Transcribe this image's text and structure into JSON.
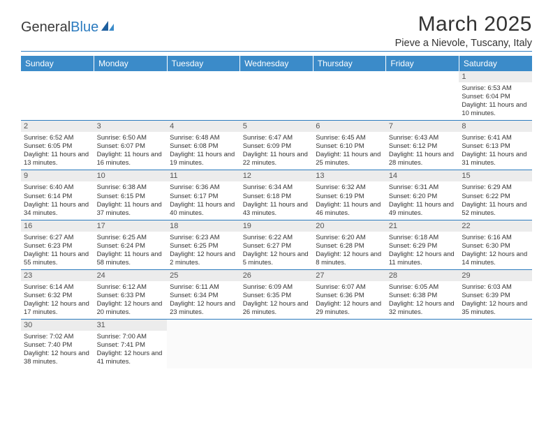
{
  "logo": {
    "word1": "General",
    "word2": "Blue"
  },
  "title": "March 2025",
  "location": "Pieve a Nievole, Tuscany, Italy",
  "colors": {
    "header_bg": "#3b8bc9",
    "rule": "#2b7bbf",
    "daynum_bg": "#ececec",
    "text": "#333333"
  },
  "weekdays": [
    "Sunday",
    "Monday",
    "Tuesday",
    "Wednesday",
    "Thursday",
    "Friday",
    "Saturday"
  ],
  "weeks": [
    [
      null,
      null,
      null,
      null,
      null,
      null,
      {
        "n": "1",
        "sr": "Sunrise: 6:53 AM",
        "ss": "Sunset: 6:04 PM",
        "dl": "Daylight: 11 hours and 10 minutes."
      }
    ],
    [
      {
        "n": "2",
        "sr": "Sunrise: 6:52 AM",
        "ss": "Sunset: 6:05 PM",
        "dl": "Daylight: 11 hours and 13 minutes."
      },
      {
        "n": "3",
        "sr": "Sunrise: 6:50 AM",
        "ss": "Sunset: 6:07 PM",
        "dl": "Daylight: 11 hours and 16 minutes."
      },
      {
        "n": "4",
        "sr": "Sunrise: 6:48 AM",
        "ss": "Sunset: 6:08 PM",
        "dl": "Daylight: 11 hours and 19 minutes."
      },
      {
        "n": "5",
        "sr": "Sunrise: 6:47 AM",
        "ss": "Sunset: 6:09 PM",
        "dl": "Daylight: 11 hours and 22 minutes."
      },
      {
        "n": "6",
        "sr": "Sunrise: 6:45 AM",
        "ss": "Sunset: 6:10 PM",
        "dl": "Daylight: 11 hours and 25 minutes."
      },
      {
        "n": "7",
        "sr": "Sunrise: 6:43 AM",
        "ss": "Sunset: 6:12 PM",
        "dl": "Daylight: 11 hours and 28 minutes."
      },
      {
        "n": "8",
        "sr": "Sunrise: 6:41 AM",
        "ss": "Sunset: 6:13 PM",
        "dl": "Daylight: 11 hours and 31 minutes."
      }
    ],
    [
      {
        "n": "9",
        "sr": "Sunrise: 6:40 AM",
        "ss": "Sunset: 6:14 PM",
        "dl": "Daylight: 11 hours and 34 minutes."
      },
      {
        "n": "10",
        "sr": "Sunrise: 6:38 AM",
        "ss": "Sunset: 6:15 PM",
        "dl": "Daylight: 11 hours and 37 minutes."
      },
      {
        "n": "11",
        "sr": "Sunrise: 6:36 AM",
        "ss": "Sunset: 6:17 PM",
        "dl": "Daylight: 11 hours and 40 minutes."
      },
      {
        "n": "12",
        "sr": "Sunrise: 6:34 AM",
        "ss": "Sunset: 6:18 PM",
        "dl": "Daylight: 11 hours and 43 minutes."
      },
      {
        "n": "13",
        "sr": "Sunrise: 6:32 AM",
        "ss": "Sunset: 6:19 PM",
        "dl": "Daylight: 11 hours and 46 minutes."
      },
      {
        "n": "14",
        "sr": "Sunrise: 6:31 AM",
        "ss": "Sunset: 6:20 PM",
        "dl": "Daylight: 11 hours and 49 minutes."
      },
      {
        "n": "15",
        "sr": "Sunrise: 6:29 AM",
        "ss": "Sunset: 6:22 PM",
        "dl": "Daylight: 11 hours and 52 minutes."
      }
    ],
    [
      {
        "n": "16",
        "sr": "Sunrise: 6:27 AM",
        "ss": "Sunset: 6:23 PM",
        "dl": "Daylight: 11 hours and 55 minutes."
      },
      {
        "n": "17",
        "sr": "Sunrise: 6:25 AM",
        "ss": "Sunset: 6:24 PM",
        "dl": "Daylight: 11 hours and 58 minutes."
      },
      {
        "n": "18",
        "sr": "Sunrise: 6:23 AM",
        "ss": "Sunset: 6:25 PM",
        "dl": "Daylight: 12 hours and 2 minutes."
      },
      {
        "n": "19",
        "sr": "Sunrise: 6:22 AM",
        "ss": "Sunset: 6:27 PM",
        "dl": "Daylight: 12 hours and 5 minutes."
      },
      {
        "n": "20",
        "sr": "Sunrise: 6:20 AM",
        "ss": "Sunset: 6:28 PM",
        "dl": "Daylight: 12 hours and 8 minutes."
      },
      {
        "n": "21",
        "sr": "Sunrise: 6:18 AM",
        "ss": "Sunset: 6:29 PM",
        "dl": "Daylight: 12 hours and 11 minutes."
      },
      {
        "n": "22",
        "sr": "Sunrise: 6:16 AM",
        "ss": "Sunset: 6:30 PM",
        "dl": "Daylight: 12 hours and 14 minutes."
      }
    ],
    [
      {
        "n": "23",
        "sr": "Sunrise: 6:14 AM",
        "ss": "Sunset: 6:32 PM",
        "dl": "Daylight: 12 hours and 17 minutes."
      },
      {
        "n": "24",
        "sr": "Sunrise: 6:12 AM",
        "ss": "Sunset: 6:33 PM",
        "dl": "Daylight: 12 hours and 20 minutes."
      },
      {
        "n": "25",
        "sr": "Sunrise: 6:11 AM",
        "ss": "Sunset: 6:34 PM",
        "dl": "Daylight: 12 hours and 23 minutes."
      },
      {
        "n": "26",
        "sr": "Sunrise: 6:09 AM",
        "ss": "Sunset: 6:35 PM",
        "dl": "Daylight: 12 hours and 26 minutes."
      },
      {
        "n": "27",
        "sr": "Sunrise: 6:07 AM",
        "ss": "Sunset: 6:36 PM",
        "dl": "Daylight: 12 hours and 29 minutes."
      },
      {
        "n": "28",
        "sr": "Sunrise: 6:05 AM",
        "ss": "Sunset: 6:38 PM",
        "dl": "Daylight: 12 hours and 32 minutes."
      },
      {
        "n": "29",
        "sr": "Sunrise: 6:03 AM",
        "ss": "Sunset: 6:39 PM",
        "dl": "Daylight: 12 hours and 35 minutes."
      }
    ],
    [
      {
        "n": "30",
        "sr": "Sunrise: 7:02 AM",
        "ss": "Sunset: 7:40 PM",
        "dl": "Daylight: 12 hours and 38 minutes."
      },
      {
        "n": "31",
        "sr": "Sunrise: 7:00 AM",
        "ss": "Sunset: 7:41 PM",
        "dl": "Daylight: 12 hours and 41 minutes."
      },
      null,
      null,
      null,
      null,
      null
    ]
  ]
}
